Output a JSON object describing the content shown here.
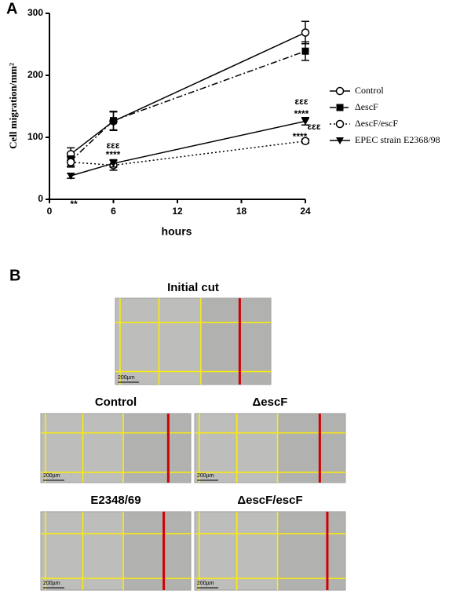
{
  "chart_data": {
    "type": "line",
    "panel_label": "A",
    "y_label": "Cell migration/mm²",
    "x_label": "hours",
    "x": [
      2,
      6,
      24
    ],
    "xlim": [
      0,
      24
    ],
    "xticks": [
      0,
      6,
      12,
      18,
      24
    ],
    "ylim": [
      0,
      300
    ],
    "yticks": [
      0,
      100,
      200,
      300
    ],
    "series": [
      {
        "name": "Control",
        "color": "#000000",
        "marker": "circle-open",
        "dash": "solid",
        "values": [
          73,
          126,
          269
        ],
        "errors": [
          10,
          15,
          18
        ]
      },
      {
        "name": "ΔescF",
        "color": "#000000",
        "marker": "square",
        "dash": "dashdot",
        "values": [
          62,
          127,
          239
        ],
        "errors": [
          8,
          15,
          15
        ]
      },
      {
        "name": "ΔescF/escF",
        "color": "#000000",
        "marker": "circle-open",
        "dash": "dotted",
        "values": [
          60,
          55,
          94
        ],
        "errors": [
          8,
          8,
          3
        ]
      },
      {
        "name": "EPEC strain E2368/98",
        "color": "#000000",
        "marker": "triangle-down",
        "dash": "solid",
        "values": [
          38,
          58,
          126
        ],
        "errors": [
          4,
          6,
          6
        ]
      }
    ],
    "annotations": [
      "**",
      "εεε",
      "****",
      "εεε",
      "****",
      "εεε",
      "****"
    ],
    "legend": "right"
  },
  "panel_b": {
    "panel_label": "B",
    "images": [
      {
        "title": "Initial cut",
        "scale_bar": "200µm"
      },
      {
        "title": "Control",
        "scale_bar": "200µm"
      },
      {
        "title": "ΔescF",
        "scale_bar": "200µm"
      },
      {
        "title": "E2348/69",
        "scale_bar": "200µm"
      },
      {
        "title": "ΔescF/escF",
        "scale_bar": "200µm"
      }
    ]
  }
}
